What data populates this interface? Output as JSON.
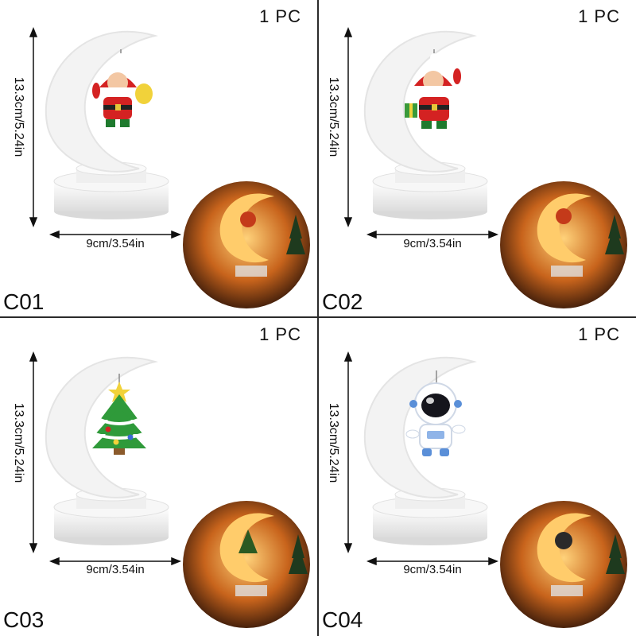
{
  "variants": [
    {
      "code": "C01",
      "quantity": "1 PC",
      "height": "13.3cm/5.24in",
      "width": "9cm/3.54in",
      "ornament": "santa-bag-icon"
    },
    {
      "code": "C02",
      "quantity": "1 PC",
      "height": "13.3cm/5.24in",
      "width": "9cm/3.54in",
      "ornament": "santa-gift-icon"
    },
    {
      "code": "C03",
      "quantity": "1 PC",
      "height": "13.3cm/5.24in",
      "width": "9cm/3.54in",
      "ornament": "christmas-tree-icon"
    },
    {
      "code": "C04",
      "quantity": "1 PC",
      "height": "13.3cm/5.24in",
      "width": "9cm/3.54in",
      "ornament": "astronaut-icon"
    }
  ],
  "colors": {
    "lamp_white": "#f2f2f2",
    "glow": "#ffb43c",
    "night": "#2a1208"
  }
}
